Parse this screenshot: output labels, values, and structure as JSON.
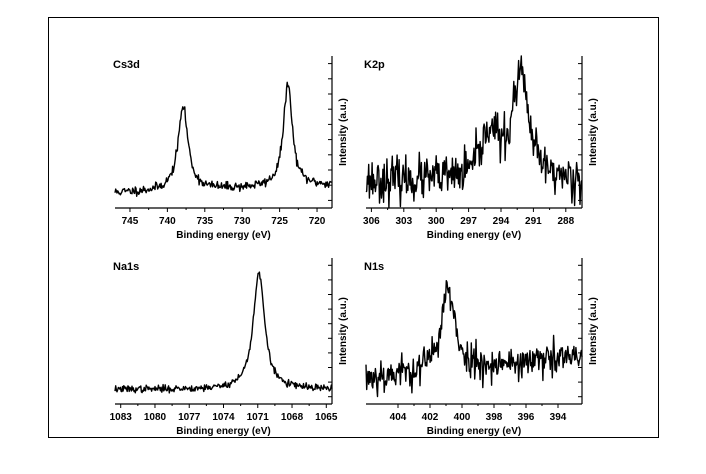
{
  "chart_data": [
    {
      "type": "line",
      "panel_label": "Cs3d",
      "xlabel": "Binding energy (eV)",
      "ylabel": "Intensity (a.u.)",
      "xlim": [
        747,
        718
      ],
      "ylim": [
        0,
        1
      ],
      "xticks": [
        745,
        740,
        735,
        730,
        725,
        720
      ],
      "yticks": [
        0.05,
        0.15,
        0.25,
        0.35,
        0.45,
        0.55,
        0.65,
        0.75,
        0.85,
        0.95
      ],
      "baseline": 0.1,
      "slope": 0.05,
      "noise": 0.015,
      "seed": 11,
      "peaks": [
        {
          "center": 737.9,
          "height": 0.55,
          "width": 0.8
        },
        {
          "center": 723.9,
          "height": 0.68,
          "width": 0.7
        }
      ]
    },
    {
      "type": "line",
      "panel_label": "K2p",
      "xlabel": "Binding energy (eV)",
      "ylabel": "Intensity (a.u.)",
      "xlim": [
        306.5,
        286.5
      ],
      "ylim": [
        0,
        1
      ],
      "xticks": [
        306,
        303,
        300,
        297,
        294,
        291,
        288
      ],
      "yticks": [
        0.05,
        0.15,
        0.25,
        0.35,
        0.45,
        0.55,
        0.65,
        0.75,
        0.85,
        0.95
      ],
      "baseline": 0.18,
      "slope": 0.0,
      "noise": 0.07,
      "seed": 23,
      "peaks": [
        {
          "center": 295.0,
          "height": 0.32,
          "width": 0.9
        },
        {
          "center": 292.2,
          "height": 0.7,
          "width": 0.85
        }
      ]
    },
    {
      "type": "line",
      "panel_label": "Na1s",
      "xlabel": "Binding energy (eV)",
      "ylabel": "Intensity (a.u.)",
      "xlim": [
        1083.5,
        1064.5
      ],
      "ylim": [
        0,
        1
      ],
      "xticks": [
        1083,
        1080,
        1077,
        1074,
        1071,
        1068,
        1065
      ],
      "yticks": [
        0.05,
        0.15,
        0.25,
        0.35,
        0.45,
        0.55,
        0.65,
        0.75,
        0.85,
        0.95
      ],
      "baseline": 0.1,
      "slope": 0.0,
      "noise": 0.012,
      "seed": 37,
      "peaks": [
        {
          "center": 1070.9,
          "height": 0.8,
          "width": 0.6
        }
      ]
    },
    {
      "type": "line",
      "panel_label": "N1s",
      "xlabel": "Binding energy (eV)",
      "ylabel": "Intensity (a.u.)",
      "xlim": [
        406,
        392.5
      ],
      "ylim": [
        0,
        1
      ],
      "xticks": [
        404,
        402,
        400,
        398,
        396,
        394
      ],
      "yticks": [
        0.05,
        0.15,
        0.25,
        0.35,
        0.45,
        0.55,
        0.65,
        0.75,
        0.85,
        0.95
      ],
      "baseline": 0.18,
      "slope": 0.14,
      "noise": 0.06,
      "seed": 53,
      "peaks": [
        {
          "center": 400.9,
          "height": 0.55,
          "width": 0.5
        }
      ]
    }
  ]
}
